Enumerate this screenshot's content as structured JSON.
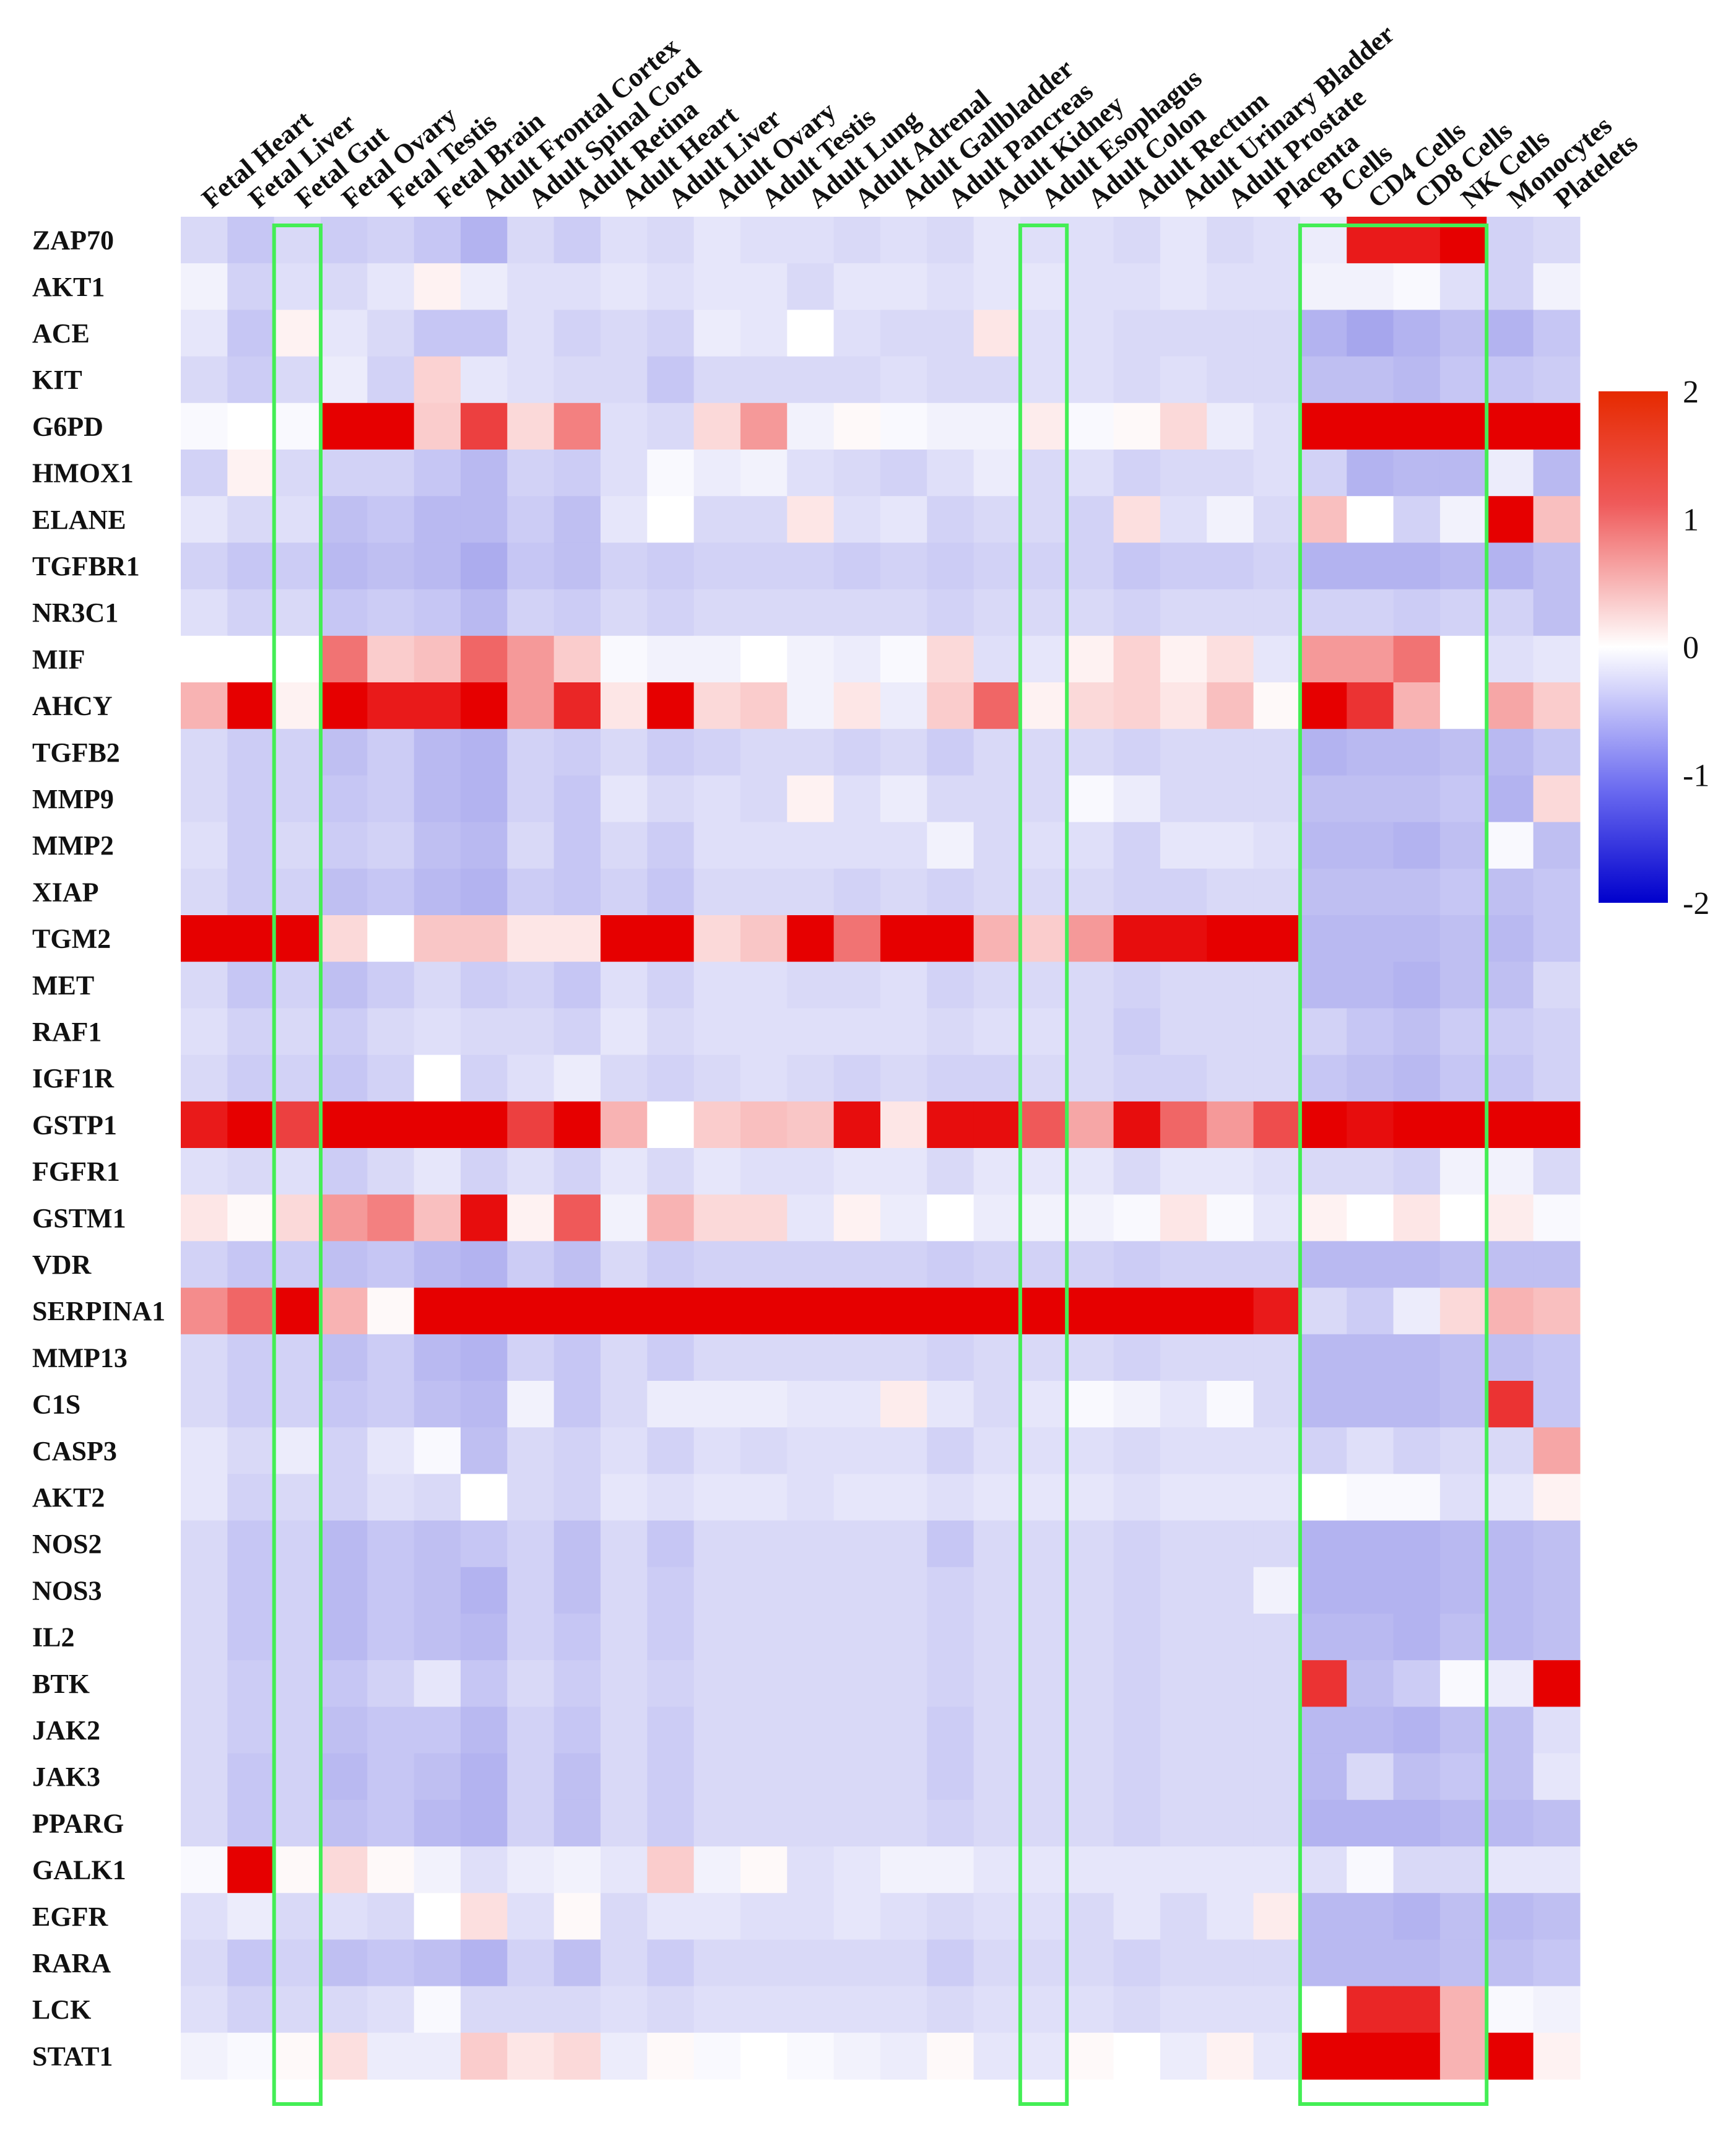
{
  "chart_data": {
    "type": "heatmap",
    "title": "",
    "xlabel": "",
    "ylabel": "",
    "colorscale": {
      "min": -2,
      "mid": 0,
      "max": 2,
      "low_color": "#0000cc",
      "mid_color": "#ffffff",
      "high_color": "#e60000"
    },
    "colorbar_ticks": [
      2,
      1,
      0,
      -1,
      -2
    ],
    "highlight_color": "#44ee55",
    "columns": [
      "Fetal Heart",
      "Fetal Liver",
      "Fetal Gut",
      "Fetal Ovary",
      "Fetal Testis",
      "Fetal Brain",
      "Adult Frontal Cortex",
      "Adult Spinal Cord",
      "Adult Retina",
      "Adult Heart",
      "Adult Liver",
      "Adult Ovary",
      "Adult Testis",
      "Adult Lung",
      "Adult Adrenal",
      "Adult Gallbladder",
      "Adult Pancreas",
      "Adult Kidney",
      "Adult Esophagus",
      "Adult Colon",
      "Adult Rectum",
      "Adult Urinary Bladder",
      "Adult Prostate",
      "Placenta",
      "B Cells",
      "CD4 Cells",
      "CD8 Cells",
      "NK Cells",
      "Monocytes",
      "Platelets"
    ],
    "rows": [
      "ZAP70",
      "AKT1",
      "ACE",
      "KIT",
      "G6PD",
      "HMOX1",
      "ELANE",
      "TGFBR1",
      "NR3C1",
      "MIF",
      "AHCY",
      "TGFB2",
      "MMP9",
      "MMP2",
      "XIAP",
      "TGM2",
      "MET",
      "RAF1",
      "IGF1R",
      "GSTP1",
      "FGFR1",
      "GSTM1",
      "VDR",
      "SERPINA1",
      "MMP13",
      "C1S",
      "CASP3",
      "AKT2",
      "NOS2",
      "NOS3",
      "IL2",
      "BTK",
      "JAK2",
      "JAK3",
      "PPARG",
      "GALK1",
      "EGFR",
      "RARA",
      "LCK",
      "STAT1"
    ],
    "highlighted_columns": [
      [
        "Fetal Gut"
      ],
      [
        "Adult Esophagus"
      ],
      [
        "B Cells",
        "CD4 Cells",
        "CD8 Cells",
        "NK Cells"
      ]
    ],
    "values": [
      [
        -0.3,
        -0.45,
        -0.3,
        -0.4,
        -0.35,
        -0.45,
        -0.6,
        -0.3,
        -0.4,
        -0.25,
        -0.3,
        -0.2,
        -0.25,
        -0.25,
        -0.3,
        -0.25,
        -0.3,
        -0.2,
        -0.25,
        -0.25,
        -0.3,
        -0.2,
        -0.3,
        -0.25,
        -0.15,
        1.8,
        1.8,
        2.2,
        -0.35,
        -0.3
      ],
      [
        -0.1,
        -0.35,
        -0.25,
        -0.3,
        -0.2,
        0.1,
        -0.15,
        -0.25,
        -0.25,
        -0.2,
        -0.25,
        -0.2,
        -0.2,
        -0.3,
        -0.2,
        -0.2,
        -0.25,
        -0.2,
        -0.2,
        -0.25,
        -0.25,
        -0.2,
        -0.25,
        -0.25,
        -0.1,
        -0.1,
        -0.05,
        -0.25,
        -0.35,
        -0.1
      ],
      [
        -0.2,
        -0.45,
        0.1,
        -0.2,
        -0.3,
        -0.45,
        -0.45,
        -0.25,
        -0.35,
        -0.3,
        -0.35,
        -0.15,
        -0.2,
        0.0,
        -0.25,
        -0.3,
        -0.3,
        0.2,
        -0.25,
        -0.25,
        -0.3,
        -0.3,
        -0.3,
        -0.3,
        -0.6,
        -0.7,
        -0.6,
        -0.5,
        -0.6,
        -0.45
      ],
      [
        -0.3,
        -0.4,
        -0.3,
        -0.15,
        -0.35,
        0.35,
        -0.2,
        -0.25,
        -0.3,
        -0.3,
        -0.45,
        -0.3,
        -0.3,
        -0.3,
        -0.3,
        -0.25,
        -0.3,
        -0.3,
        -0.25,
        -0.25,
        -0.3,
        -0.25,
        -0.3,
        -0.3,
        -0.5,
        -0.5,
        -0.55,
        -0.45,
        -0.45,
        -0.4
      ],
      [
        -0.05,
        0.0,
        -0.05,
        2.2,
        2.2,
        0.4,
        1.5,
        0.3,
        1.0,
        -0.25,
        -0.3,
        0.3,
        0.8,
        -0.1,
        0.05,
        -0.05,
        -0.1,
        -0.1,
        0.15,
        -0.05,
        0.05,
        0.3,
        -0.15,
        -0.25,
        2.2,
        2.2,
        2.2,
        2.2,
        2.2,
        2.2
      ],
      [
        -0.35,
        0.1,
        -0.3,
        -0.35,
        -0.35,
        -0.45,
        -0.55,
        -0.35,
        -0.4,
        -0.25,
        -0.05,
        -0.15,
        -0.1,
        -0.25,
        -0.3,
        -0.35,
        -0.25,
        -0.15,
        -0.3,
        -0.25,
        -0.35,
        -0.3,
        -0.3,
        -0.25,
        -0.35,
        -0.6,
        -0.55,
        -0.55,
        -0.15,
        -0.55
      ],
      [
        -0.2,
        -0.3,
        -0.25,
        -0.5,
        -0.45,
        -0.55,
        -0.55,
        -0.4,
        -0.5,
        -0.2,
        0.0,
        -0.3,
        -0.3,
        0.2,
        -0.25,
        -0.2,
        -0.35,
        -0.3,
        -0.3,
        -0.35,
        0.25,
        -0.25,
        -0.1,
        -0.3,
        0.5,
        0.0,
        -0.35,
        -0.1,
        2.2,
        0.5
      ],
      [
        -0.35,
        -0.45,
        -0.4,
        -0.55,
        -0.5,
        -0.55,
        -0.65,
        -0.45,
        -0.5,
        -0.35,
        -0.4,
        -0.35,
        -0.35,
        -0.35,
        -0.4,
        -0.35,
        -0.4,
        -0.35,
        -0.35,
        -0.35,
        -0.45,
        -0.4,
        -0.4,
        -0.35,
        -0.6,
        -0.6,
        -0.6,
        -0.55,
        -0.6,
        -0.5
      ],
      [
        -0.25,
        -0.35,
        -0.3,
        -0.45,
        -0.4,
        -0.45,
        -0.55,
        -0.35,
        -0.4,
        -0.3,
        -0.35,
        -0.3,
        -0.3,
        -0.3,
        -0.3,
        -0.3,
        -0.35,
        -0.3,
        -0.3,
        -0.3,
        -0.35,
        -0.3,
        -0.3,
        -0.3,
        -0.35,
        -0.35,
        -0.4,
        -0.35,
        -0.35,
        -0.5
      ],
      [
        0.0,
        0.0,
        0.0,
        1.1,
        0.4,
        0.5,
        1.2,
        0.8,
        0.4,
        -0.05,
        -0.1,
        -0.1,
        0.0,
        -0.1,
        -0.15,
        -0.05,
        0.3,
        -0.25,
        -0.2,
        0.1,
        0.35,
        0.1,
        0.25,
        -0.2,
        0.8,
        0.8,
        1.1,
        0.0,
        -0.25,
        -0.2
      ],
      [
        0.6,
        2.2,
        0.1,
        2.2,
        1.8,
        1.8,
        2.2,
        0.8,
        1.7,
        0.2,
        2.0,
        0.3,
        0.4,
        -0.1,
        0.2,
        -0.15,
        0.4,
        1.2,
        0.1,
        0.3,
        0.35,
        0.2,
        0.5,
        0.05,
        2.2,
        1.6,
        0.6,
        0.0,
        0.7,
        0.4
      ],
      [
        -0.3,
        -0.4,
        -0.35,
        -0.5,
        -0.4,
        -0.55,
        -0.6,
        -0.35,
        -0.4,
        -0.3,
        -0.4,
        -0.35,
        -0.3,
        -0.3,
        -0.35,
        -0.3,
        -0.4,
        -0.3,
        -0.3,
        -0.3,
        -0.35,
        -0.3,
        -0.3,
        -0.3,
        -0.6,
        -0.55,
        -0.55,
        -0.5,
        -0.55,
        -0.45
      ],
      [
        -0.3,
        -0.4,
        -0.35,
        -0.45,
        -0.4,
        -0.55,
        -0.6,
        -0.35,
        -0.45,
        -0.2,
        -0.3,
        -0.25,
        -0.3,
        0.1,
        -0.25,
        -0.15,
        -0.3,
        -0.3,
        -0.3,
        -0.05,
        -0.15,
        -0.3,
        -0.3,
        -0.3,
        -0.5,
        -0.5,
        -0.5,
        -0.45,
        -0.6,
        0.3
      ],
      [
        -0.25,
        -0.4,
        -0.3,
        -0.4,
        -0.35,
        -0.5,
        -0.55,
        -0.3,
        -0.45,
        -0.3,
        -0.4,
        -0.25,
        -0.25,
        -0.25,
        -0.25,
        -0.25,
        -0.1,
        -0.3,
        -0.25,
        -0.25,
        -0.35,
        -0.2,
        -0.2,
        -0.25,
        -0.55,
        -0.55,
        -0.6,
        -0.5,
        -0.05,
        -0.5
      ],
      [
        -0.3,
        -0.4,
        -0.35,
        -0.5,
        -0.45,
        -0.55,
        -0.6,
        -0.4,
        -0.45,
        -0.35,
        -0.45,
        -0.3,
        -0.3,
        -0.3,
        -0.35,
        -0.3,
        -0.35,
        -0.3,
        -0.3,
        -0.3,
        -0.35,
        -0.35,
        -0.3,
        -0.3,
        -0.5,
        -0.5,
        -0.5,
        -0.45,
        -0.5,
        -0.45
      ],
      [
        2.2,
        2.2,
        2.0,
        0.3,
        0.0,
        0.45,
        0.45,
        0.2,
        0.2,
        2.2,
        2.2,
        0.3,
        0.45,
        2.2,
        1.1,
        2.2,
        2.2,
        0.6,
        0.4,
        0.8,
        1.9,
        1.9,
        2.2,
        2.2,
        -0.55,
        -0.55,
        -0.55,
        -0.5,
        -0.55,
        -0.45
      ],
      [
        -0.3,
        -0.45,
        -0.35,
        -0.5,
        -0.4,
        -0.3,
        -0.4,
        -0.35,
        -0.45,
        -0.25,
        -0.35,
        -0.25,
        -0.25,
        -0.3,
        -0.3,
        -0.25,
        -0.35,
        -0.3,
        -0.3,
        -0.3,
        -0.35,
        -0.3,
        -0.3,
        -0.3,
        -0.55,
        -0.55,
        -0.6,
        -0.5,
        -0.5,
        -0.3
      ],
      [
        -0.25,
        -0.35,
        -0.3,
        -0.4,
        -0.3,
        -0.25,
        -0.3,
        -0.3,
        -0.35,
        -0.2,
        -0.3,
        -0.25,
        -0.25,
        -0.25,
        -0.25,
        -0.25,
        -0.3,
        -0.25,
        -0.25,
        -0.3,
        -0.4,
        -0.3,
        -0.3,
        -0.3,
        -0.35,
        -0.45,
        -0.5,
        -0.4,
        -0.4,
        -0.35
      ],
      [
        -0.3,
        -0.4,
        -0.35,
        -0.45,
        -0.35,
        0.0,
        -0.35,
        -0.25,
        -0.15,
        -0.3,
        -0.35,
        -0.3,
        -0.25,
        -0.3,
        -0.35,
        -0.3,
        -0.35,
        -0.35,
        -0.3,
        -0.3,
        -0.35,
        -0.35,
        -0.3,
        -0.3,
        -0.45,
        -0.5,
        -0.55,
        -0.45,
        -0.45,
        -0.35
      ],
      [
        1.8,
        2.2,
        1.5,
        2.2,
        2.2,
        2.2,
        2.2,
        1.5,
        2.2,
        0.6,
        0.0,
        0.4,
        0.5,
        0.45,
        1.9,
        0.2,
        1.9,
        1.9,
        1.3,
        0.7,
        1.9,
        1.2,
        0.8,
        1.4,
        2.2,
        1.9,
        2.2,
        2.2,
        2.2,
        2.2
      ],
      [
        -0.25,
        -0.3,
        -0.25,
        -0.4,
        -0.3,
        -0.2,
        -0.35,
        -0.25,
        -0.35,
        -0.2,
        -0.3,
        -0.2,
        -0.25,
        -0.25,
        -0.2,
        -0.2,
        -0.3,
        -0.2,
        -0.2,
        -0.2,
        -0.3,
        -0.2,
        -0.2,
        -0.25,
        -0.3,
        -0.3,
        -0.35,
        -0.1,
        -0.1,
        -0.3
      ],
      [
        0.2,
        0.05,
        0.3,
        0.8,
        1.0,
        0.5,
        1.9,
        0.1,
        1.3,
        -0.1,
        0.6,
        0.3,
        0.3,
        -0.2,
        0.1,
        -0.15,
        0.0,
        -0.15,
        -0.1,
        -0.1,
        -0.05,
        0.2,
        -0.05,
        -0.2,
        0.1,
        0.0,
        0.2,
        0.0,
        0.15,
        -0.05
      ],
      [
        -0.35,
        -0.45,
        -0.4,
        -0.5,
        -0.45,
        -0.55,
        -0.6,
        -0.4,
        -0.5,
        -0.3,
        -0.4,
        -0.35,
        -0.35,
        -0.35,
        -0.35,
        -0.35,
        -0.4,
        -0.35,
        -0.35,
        -0.35,
        -0.4,
        -0.35,
        -0.35,
        -0.35,
        -0.55,
        -0.55,
        -0.55,
        -0.5,
        -0.5,
        -0.5
      ],
      [
        0.9,
        1.2,
        2.2,
        0.6,
        0.05,
        2.2,
        2.2,
        2.2,
        2.2,
        2.2,
        2.2,
        2.2,
        2.2,
        2.2,
        2.2,
        2.2,
        2.2,
        2.2,
        2.2,
        2.2,
        2.2,
        2.2,
        2.2,
        1.8,
        -0.3,
        -0.4,
        -0.15,
        0.3,
        0.6,
        0.5
      ],
      [
        -0.3,
        -0.4,
        -0.35,
        -0.5,
        -0.4,
        -0.55,
        -0.6,
        -0.35,
        -0.45,
        -0.3,
        -0.4,
        -0.3,
        -0.3,
        -0.3,
        -0.3,
        -0.3,
        -0.35,
        -0.3,
        -0.3,
        -0.3,
        -0.35,
        -0.3,
        -0.3,
        -0.3,
        -0.55,
        -0.55,
        -0.55,
        -0.5,
        -0.5,
        -0.45
      ],
      [
        -0.3,
        -0.4,
        -0.35,
        -0.45,
        -0.4,
        -0.5,
        -0.55,
        -0.1,
        -0.45,
        -0.3,
        -0.15,
        -0.15,
        -0.15,
        -0.2,
        -0.2,
        0.15,
        -0.2,
        -0.3,
        -0.2,
        -0.05,
        -0.1,
        -0.2,
        -0.05,
        -0.3,
        -0.55,
        -0.55,
        -0.55,
        -0.5,
        1.6,
        -0.45
      ],
      [
        -0.2,
        -0.3,
        -0.15,
        -0.35,
        -0.2,
        -0.05,
        -0.5,
        -0.3,
        -0.35,
        -0.25,
        -0.35,
        -0.25,
        -0.3,
        -0.25,
        -0.25,
        -0.25,
        -0.35,
        -0.25,
        -0.25,
        -0.25,
        -0.3,
        -0.25,
        -0.25,
        -0.25,
        -0.35,
        -0.25,
        -0.35,
        -0.3,
        -0.3,
        0.7
      ],
      [
        -0.2,
        -0.35,
        -0.3,
        -0.35,
        -0.25,
        -0.3,
        0.0,
        -0.3,
        -0.35,
        -0.2,
        -0.25,
        -0.2,
        -0.2,
        -0.25,
        -0.2,
        -0.2,
        -0.25,
        -0.2,
        -0.2,
        -0.2,
        -0.25,
        -0.2,
        -0.2,
        -0.2,
        0.0,
        -0.05,
        -0.05,
        -0.25,
        -0.2,
        0.1
      ],
      [
        -0.3,
        -0.45,
        -0.35,
        -0.55,
        -0.45,
        -0.5,
        -0.45,
        -0.35,
        -0.5,
        -0.3,
        -0.45,
        -0.3,
        -0.3,
        -0.3,
        -0.3,
        -0.3,
        -0.45,
        -0.3,
        -0.3,
        -0.3,
        -0.35,
        -0.3,
        -0.3,
        -0.3,
        -0.6,
        -0.6,
        -0.6,
        -0.55,
        -0.55,
        -0.5
      ],
      [
        -0.3,
        -0.45,
        -0.35,
        -0.55,
        -0.45,
        -0.5,
        -0.6,
        -0.35,
        -0.5,
        -0.3,
        -0.4,
        -0.3,
        -0.3,
        -0.3,
        -0.3,
        -0.3,
        -0.35,
        -0.3,
        -0.3,
        -0.3,
        -0.35,
        -0.3,
        -0.3,
        -0.1,
        -0.6,
        -0.6,
        -0.6,
        -0.55,
        -0.55,
        -0.5
      ],
      [
        -0.3,
        -0.45,
        -0.35,
        -0.55,
        -0.45,
        -0.5,
        -0.55,
        -0.35,
        -0.45,
        -0.3,
        -0.4,
        -0.3,
        -0.3,
        -0.3,
        -0.3,
        -0.3,
        -0.35,
        -0.3,
        -0.3,
        -0.3,
        -0.35,
        -0.3,
        -0.3,
        -0.3,
        -0.55,
        -0.55,
        -0.6,
        -0.5,
        -0.55,
        -0.5
      ],
      [
        -0.3,
        -0.4,
        -0.35,
        -0.45,
        -0.35,
        -0.2,
        -0.45,
        -0.3,
        -0.4,
        -0.3,
        -0.35,
        -0.3,
        -0.3,
        -0.3,
        -0.3,
        -0.3,
        -0.35,
        -0.3,
        -0.3,
        -0.3,
        -0.35,
        -0.3,
        -0.3,
        -0.3,
        1.6,
        -0.5,
        -0.4,
        -0.05,
        -0.15,
        2.2
      ],
      [
        -0.3,
        -0.4,
        -0.35,
        -0.5,
        -0.45,
        -0.45,
        -0.55,
        -0.35,
        -0.45,
        -0.3,
        -0.4,
        -0.3,
        -0.3,
        -0.3,
        -0.3,
        -0.3,
        -0.4,
        -0.3,
        -0.3,
        -0.3,
        -0.35,
        -0.3,
        -0.3,
        -0.3,
        -0.55,
        -0.55,
        -0.6,
        -0.5,
        -0.5,
        -0.25
      ],
      [
        -0.3,
        -0.45,
        -0.35,
        -0.55,
        -0.45,
        -0.5,
        -0.6,
        -0.35,
        -0.5,
        -0.3,
        -0.4,
        -0.3,
        -0.3,
        -0.3,
        -0.3,
        -0.3,
        -0.4,
        -0.3,
        -0.3,
        -0.3,
        -0.35,
        -0.3,
        -0.3,
        -0.3,
        -0.55,
        -0.3,
        -0.5,
        -0.45,
        -0.5,
        -0.2
      ],
      [
        -0.3,
        -0.45,
        -0.35,
        -0.5,
        -0.45,
        -0.55,
        -0.6,
        -0.35,
        -0.5,
        -0.3,
        -0.4,
        -0.3,
        -0.3,
        -0.3,
        -0.3,
        -0.3,
        -0.35,
        -0.3,
        -0.3,
        -0.3,
        -0.35,
        -0.3,
        -0.3,
        -0.3,
        -0.6,
        -0.6,
        -0.6,
        -0.55,
        -0.55,
        -0.5
      ],
      [
        -0.05,
        2.0,
        0.05,
        0.3,
        0.05,
        -0.1,
        -0.25,
        -0.15,
        -0.1,
        -0.2,
        0.4,
        -0.1,
        0.05,
        -0.25,
        -0.2,
        -0.1,
        -0.1,
        -0.2,
        -0.2,
        -0.2,
        -0.2,
        -0.2,
        -0.2,
        -0.2,
        -0.25,
        -0.05,
        -0.3,
        -0.3,
        -0.2,
        -0.2
      ],
      [
        -0.25,
        -0.15,
        -0.3,
        -0.25,
        -0.3,
        0.0,
        0.25,
        -0.25,
        0.05,
        -0.3,
        -0.2,
        -0.2,
        -0.25,
        -0.25,
        -0.2,
        -0.25,
        -0.3,
        -0.25,
        -0.25,
        -0.3,
        -0.2,
        -0.3,
        -0.2,
        0.15,
        -0.55,
        -0.55,
        -0.6,
        -0.5,
        -0.55,
        -0.5
      ],
      [
        -0.3,
        -0.45,
        -0.35,
        -0.5,
        -0.45,
        -0.5,
        -0.6,
        -0.35,
        -0.5,
        -0.3,
        -0.4,
        -0.3,
        -0.3,
        -0.3,
        -0.3,
        -0.3,
        -0.4,
        -0.3,
        -0.3,
        -0.3,
        -0.35,
        -0.3,
        -0.3,
        -0.3,
        -0.55,
        -0.55,
        -0.55,
        -0.5,
        -0.5,
        -0.45
      ],
      [
        -0.25,
        -0.35,
        -0.3,
        -0.3,
        -0.25,
        -0.05,
        -0.3,
        -0.3,
        -0.3,
        -0.25,
        -0.3,
        -0.25,
        -0.25,
        -0.25,
        -0.25,
        -0.25,
        -0.3,
        -0.25,
        -0.25,
        -0.25,
        -0.3,
        -0.25,
        -0.25,
        -0.25,
        0.0,
        1.7,
        1.7,
        0.6,
        -0.05,
        -0.1
      ],
      [
        -0.1,
        -0.05,
        0.05,
        0.25,
        -0.15,
        -0.15,
        0.4,
        0.2,
        0.3,
        -0.15,
        0.05,
        -0.05,
        0.0,
        -0.05,
        -0.1,
        -0.15,
        0.05,
        -0.2,
        -0.2,
        0.05,
        0.0,
        -0.15,
        0.1,
        -0.2,
        2.2,
        2.2,
        2.2,
        0.6,
        2.2,
        0.1
      ]
    ]
  }
}
